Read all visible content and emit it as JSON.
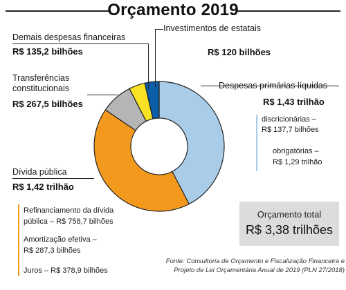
{
  "title": "Orçamento 2019",
  "chart_data": {
    "type": "pie",
    "title": "Orçamento 2019",
    "unit": "R$ bilhões",
    "slices": [
      {
        "name": "Despesas primárias líquidas",
        "value_label": "R$ 1,43 trilhão",
        "value": 1430,
        "color": "#a9cde8"
      },
      {
        "name": "Dívida pública",
        "value_label": "R$ 1,42 trilhão",
        "value": 1420,
        "color": "#f39a1e"
      },
      {
        "name": "Transferências constitucionais",
        "value_label": "R$ 267,5 bilhões",
        "value": 267.5,
        "color": "#b5b5b5"
      },
      {
        "name": "Demais despesas financeiras",
        "value_label": "R$ 135,2 bilhões",
        "value": 135.2,
        "color": "#f7e226"
      },
      {
        "name": "Investimentos de estatais",
        "value_label": "R$ 120 bilhões",
        "value": 120,
        "color": "#0b5ea8"
      }
    ]
  },
  "labels": {
    "demais": {
      "name": "Demais despesas financeiras",
      "value": "R$ 135,2 bilhões"
    },
    "investimentos": {
      "name": "Investimentos de estatais",
      "value": "R$ 120 bilhões"
    },
    "transferencias": {
      "name_line1": "Transferências",
      "name_line2": "constitucionais",
      "value": "R$ 267,5 bilhões"
    },
    "despesas": {
      "name": "Despesas primárias líquidas",
      "value": "R$ 1,43 trilhão"
    },
    "divida": {
      "name": "Dívida pública",
      "value": "R$ 1,42 trilhão"
    }
  },
  "despesas_breakdown": {
    "discricionarias_label": "discricionárias –",
    "discricionarias_value": "R$ 137,7 bilhões",
    "obrigatorias_label": "obrigatórias –",
    "obrigatorias_value": "R$ 1,29 trilhão"
  },
  "divida_breakdown": {
    "refinanciamento_line1": "Refinanciamento da dívida",
    "refinanciamento_line2": "pública – R$ 758,7 bilhões",
    "amortizacao_line1": "Amortização efetiva –",
    "amortizacao_line2": "R$ 287,3 bilhões",
    "juros": "Juros – R$ 378,9 bilhões"
  },
  "total": {
    "label": "Orçamento total",
    "value": "R$ 3,38 trilhões"
  },
  "source": {
    "line1": "Fonte: Consultoria de Orçamento e Fiscalização Financeira e",
    "line2": "Projeto de Lei Orçamentária Anual de 2019 (PLN 27/2018)"
  }
}
